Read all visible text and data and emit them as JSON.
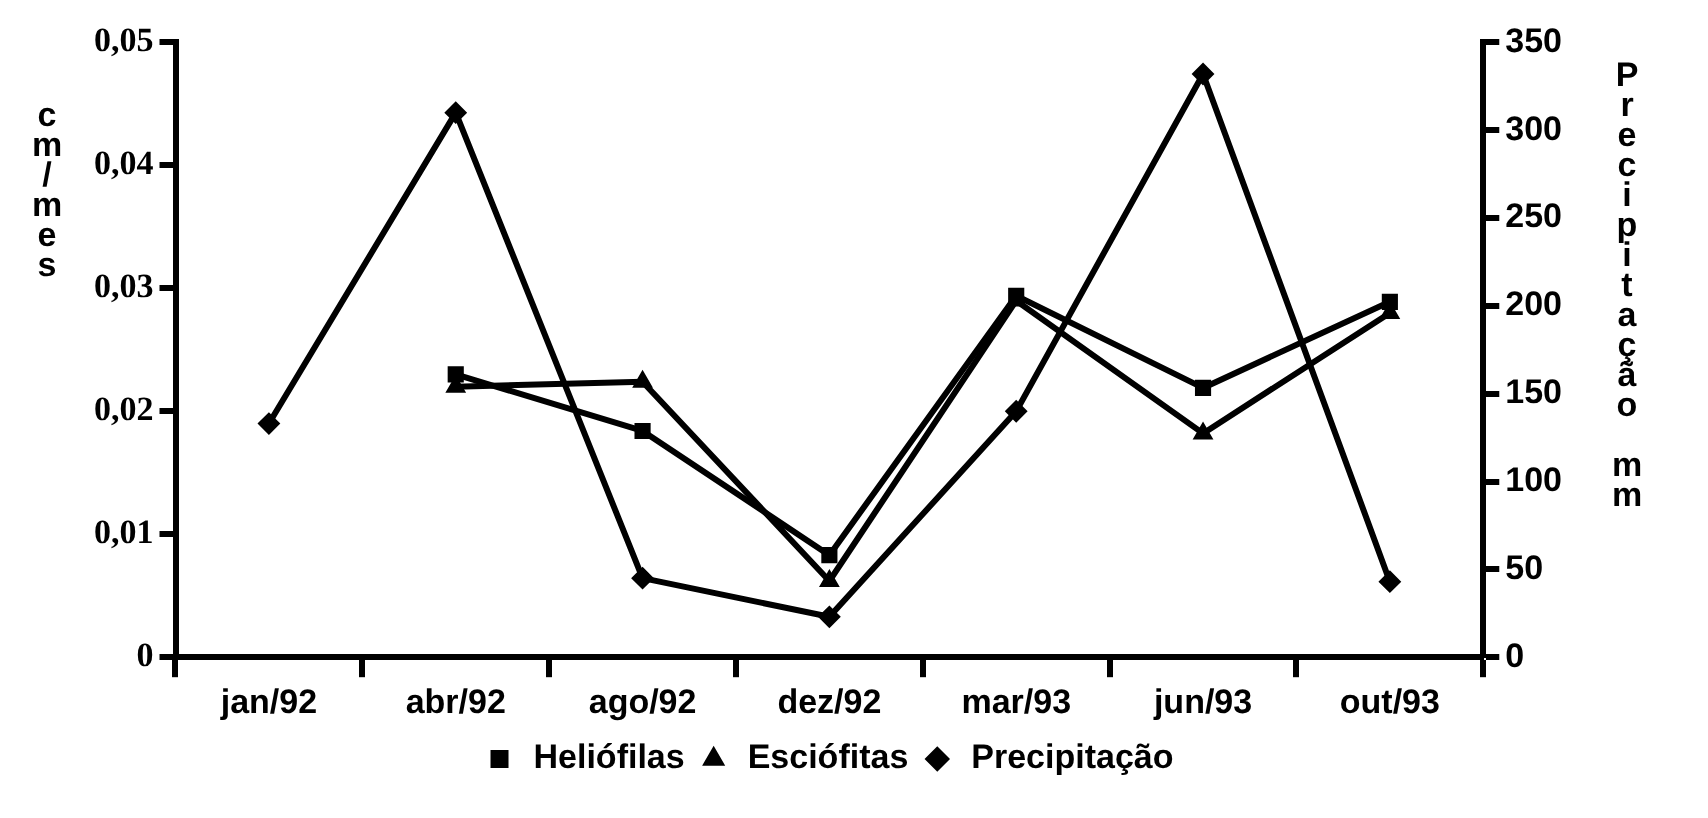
{
  "chart_data": {
    "type": "line",
    "ylabel": "cm/mes",
    "y2label": "Precipitação mm",
    "categories": [
      "jan/92",
      "abr/92",
      "ago/92",
      "dez/92",
      "mar/93",
      "jun/93",
      "out/93"
    ],
    "series": [
      {
        "name": "Heliófilas",
        "color": "#000000",
        "marker": "square",
        "values": [
          null,
          0.023,
          0.0184,
          0.0083,
          0.0294,
          0.0219,
          0.0289
        ]
      },
      {
        "name": "Esciófitas",
        "color": "#000000",
        "marker": "triangle",
        "values": [
          null,
          0.022,
          0.0224,
          0.0062,
          0.029,
          0.0182,
          0.028
        ]
      },
      {
        "name": "Precipitação",
        "color": "#000000",
        "marker": "diamond",
        "axis": "y2",
        "values": [
          133,
          310,
          45,
          23,
          140,
          332,
          43
        ]
      }
    ],
    "ylim": [
      0,
      0.05
    ],
    "yticks": [
      {
        "value": 0,
        "label": "0"
      },
      {
        "value": 0.01,
        "label": "0,01"
      },
      {
        "value": 0.02,
        "label": "0,02"
      },
      {
        "value": 0.03,
        "label": "0,03"
      },
      {
        "value": 0.04,
        "label": "0,04"
      },
      {
        "value": 0.05,
        "label": "0,05"
      }
    ],
    "y2lim": [
      0,
      350
    ],
    "y2ticks": [
      0,
      50,
      100,
      150,
      200,
      250,
      300,
      350
    ],
    "grid": false,
    "legend": "bottom",
    "line_style": "solid"
  }
}
